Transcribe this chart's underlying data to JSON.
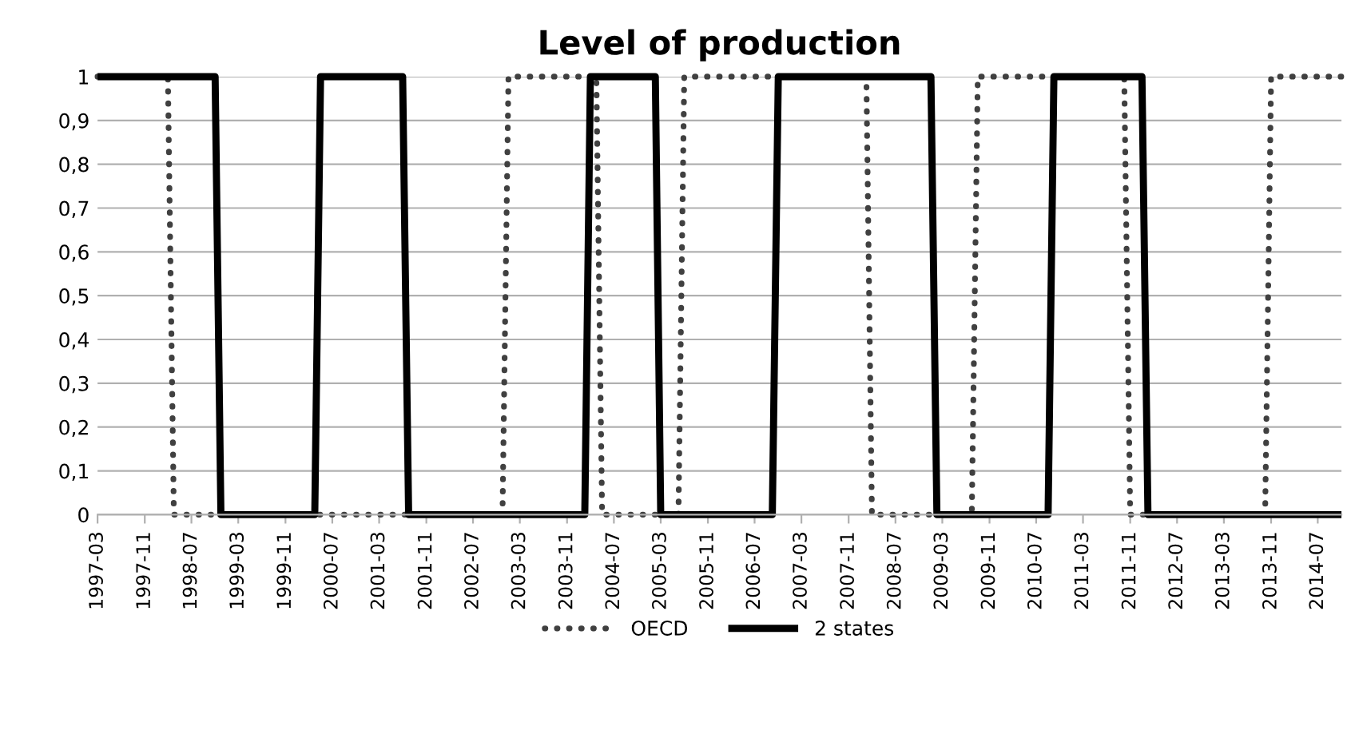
{
  "chart_data": {
    "type": "line",
    "title": "Level of production",
    "series": [
      {
        "name": "OECD",
        "color": "#404040",
        "line_style": "dotted",
        "x": [
          "1997-03",
          "1998-03",
          "1998-04",
          "2002-12",
          "2003-01",
          "2004-04",
          "2004-05",
          "2005-06",
          "2005-07",
          "2008-02",
          "2008-03",
          "2009-08",
          "2009-09",
          "2011-10",
          "2011-11",
          "2013-10",
          "2013-11",
          "2014-11"
        ],
        "values": [
          1,
          1,
          0,
          0,
          1,
          1,
          0,
          0,
          1,
          1,
          0,
          0,
          1,
          1,
          0,
          0,
          1,
          1
        ]
      },
      {
        "name": "2 states",
        "color": "#000000",
        "line_style": "solid",
        "x": [
          "1997-03",
          "1998-11",
          "1998-12",
          "2000-04",
          "2000-05",
          "2001-07",
          "2001-08",
          "2004-02",
          "2004-03",
          "2005-02",
          "2005-03",
          "2006-10",
          "2006-11",
          "2009-01",
          "2009-02",
          "2010-09",
          "2010-10",
          "2012-01",
          "2012-02",
          "2014-11"
        ],
        "values": [
          1,
          1,
          0,
          0,
          1,
          1,
          0,
          0,
          1,
          1,
          0,
          0,
          1,
          1,
          0,
          0,
          1,
          1,
          0,
          0
        ]
      }
    ],
    "xlim": [
      "1997-03",
      "2014-11"
    ],
    "xticks": [
      "1997-03",
      "1997-11",
      "1998-07",
      "1999-03",
      "1999-11",
      "2000-07",
      "2001-03",
      "2001-11",
      "2002-07",
      "2003-03",
      "2003-11",
      "2004-07",
      "2005-03",
      "2005-11",
      "2006-07",
      "2007-03",
      "2007-11",
      "2008-07",
      "2009-03",
      "2009-11",
      "2010-07",
      "2011-03",
      "2011-11",
      "2012-07",
      "2013-03",
      "2013-11",
      "2014-07"
    ],
    "ylim": [
      0,
      1
    ],
    "yticks": [
      0,
      {
        "value": 0.1,
        "label": "0,1"
      },
      {
        "value": 0.2,
        "label": "0,2"
      },
      {
        "value": 0.3,
        "label": "0,3"
      },
      {
        "value": 0.4,
        "label": "0,4"
      },
      {
        "value": 0.5,
        "label": "0,5"
      },
      {
        "value": 0.6,
        "label": "0,6"
      },
      {
        "value": 0.7,
        "label": "0,7"
      },
      {
        "value": 0.8,
        "label": "0,8"
      },
      {
        "value": 0.9,
        "label": "0,9"
      },
      1
    ],
    "grid": "y",
    "legend": "bottom",
    "marker": "none"
  }
}
